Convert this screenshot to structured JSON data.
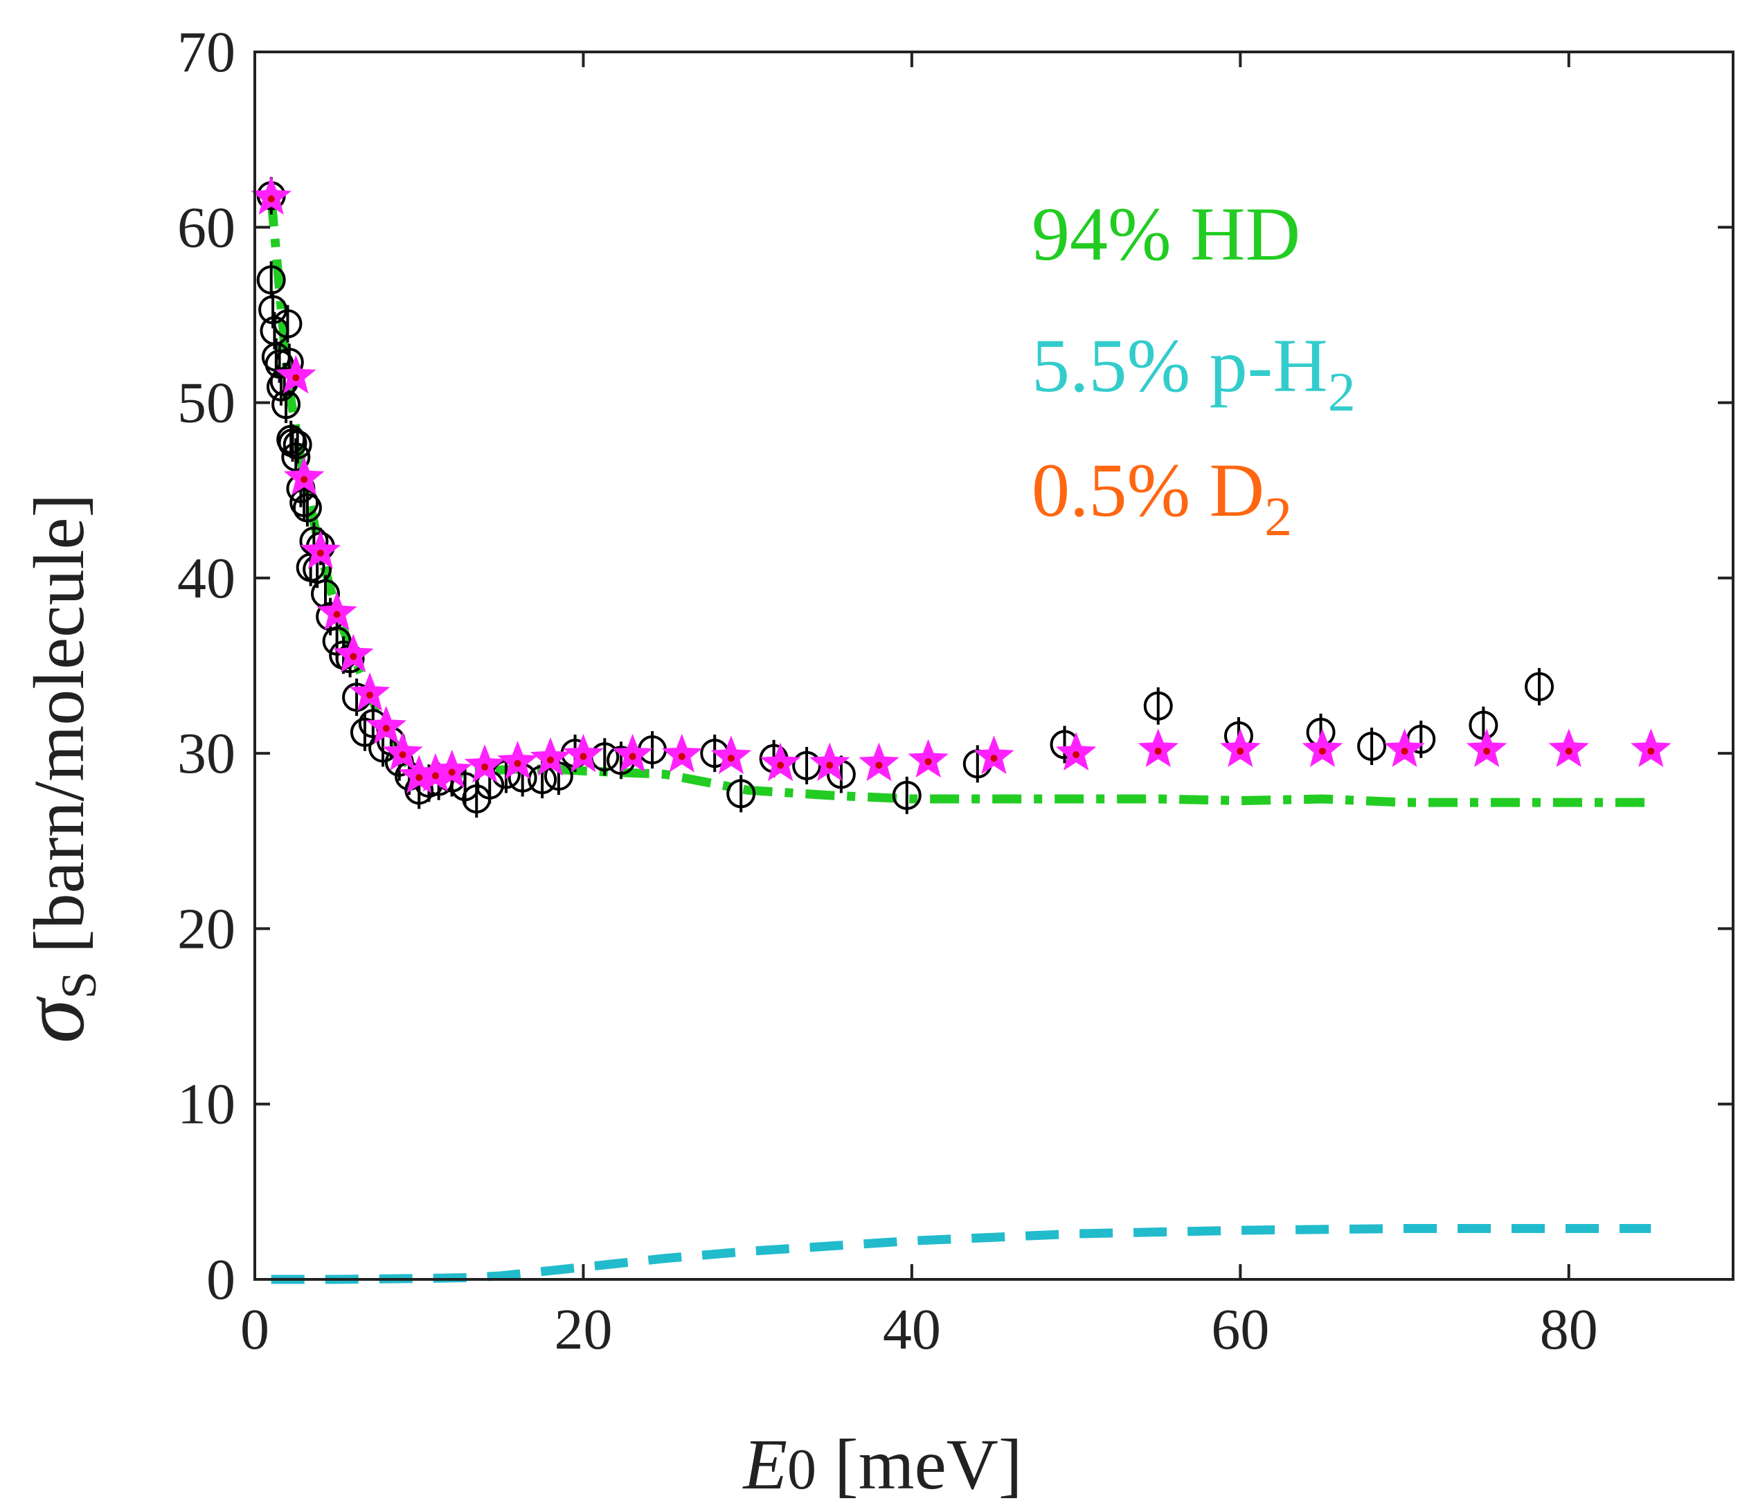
{
  "chart_data": {
    "type": "scatter",
    "xlabel": {
      "italic": "E",
      "sub": "0",
      "rest": " [meV]"
    },
    "ylabel": {
      "symbol": "σ",
      "sub": "S",
      "rest": " [barn/molecule]"
    },
    "xlim": [
      0,
      90
    ],
    "ylim": [
      0,
      70
    ],
    "xticks": [
      0,
      20,
      40,
      60,
      80
    ],
    "yticks": [
      0,
      10,
      20,
      30,
      40,
      50,
      60,
      70
    ],
    "grid": false,
    "annotations": [
      {
        "text": "94% HD",
        "sub": "",
        "color": "#22cc22"
      },
      {
        "text": "5.5% p-H",
        "sub": "2",
        "color": "#33cccc"
      },
      {
        "text": "0.5% D",
        "sub": "2",
        "color": "#ff6611"
      }
    ],
    "series": [
      {
        "marker": "circle-bar",
        "color": "#000000",
        "x": [
          1.0,
          1.0,
          1.1,
          1.2,
          1.3,
          1.5,
          1.6,
          1.8,
          1.9,
          2.0,
          2.1,
          2.2,
          2.3,
          2.5,
          2.6,
          2.8,
          3.0,
          3.2,
          3.4,
          3.6,
          3.8,
          4.0,
          4.3,
          4.6,
          5.0,
          5.4,
          5.8,
          6.2,
          6.7,
          7.2,
          7.8,
          8.3,
          8.8,
          9.4,
          10.0,
          10.6,
          11.2,
          12.0,
          12.8,
          13.5,
          14.3,
          15.3,
          16.3,
          17.5,
          18.5,
          19.5,
          21.3,
          22.3,
          24.2,
          28.0,
          29.6,
          31.6,
          33.6,
          35.7,
          39.7,
          44.0,
          49.3,
          55.0,
          59.9,
          64.9,
          68.0,
          71.0,
          74.8,
          78.2
        ],
        "y": [
          61.8,
          57.0,
          55.3,
          54.1,
          52.6,
          52.2,
          50.9,
          51.2,
          49.9,
          54.5,
          52.3,
          47.9,
          47.7,
          46.9,
          47.6,
          45.1,
          44.3,
          44.0,
          40.6,
          42.1,
          40.5,
          41.8,
          39.1,
          37.8,
          36.4,
          35.6,
          35.4,
          33.2,
          31.2,
          31.7,
          30.3,
          30.7,
          29.5,
          28.7,
          27.9,
          28.3,
          28.4,
          28.6,
          28.1,
          27.4,
          28.2,
          28.8,
          28.6,
          28.5,
          28.7,
          30.0,
          29.8,
          29.6,
          30.2,
          30.0,
          27.7,
          29.7,
          29.3,
          28.8,
          27.6,
          29.4,
          30.5,
          32.7,
          31.0,
          31.2,
          30.4,
          30.8,
          31.6,
          33.8
        ]
      },
      {
        "marker": "star",
        "color": "#ff22ff",
        "x": [
          1.0,
          2.5,
          3.0,
          4.0,
          5.0,
          6.0,
          7.0,
          8.0,
          9.0,
          10.0,
          11.0,
          12.0,
          14.0,
          16.0,
          18.0,
          20.0,
          23.0,
          26.0,
          29.0,
          32.0,
          35.0,
          38.0,
          41.0,
          45.0,
          50.0,
          55.0,
          60.0,
          65.0,
          70.0,
          75.0,
          80.0,
          85.0
        ],
        "y": [
          61.7,
          51.5,
          45.7,
          41.5,
          38.0,
          35.6,
          33.4,
          31.5,
          30.0,
          28.7,
          28.8,
          29.0,
          29.3,
          29.5,
          29.7,
          29.9,
          29.9,
          29.9,
          29.8,
          29.4,
          29.4,
          29.4,
          29.6,
          29.8,
          30.0,
          30.2,
          30.2,
          30.2,
          30.2,
          30.2,
          30.2,
          30.2
        ]
      },
      {
        "name": "94% HD",
        "line": "dashdot",
        "color": "#22cc22",
        "x": [
          1.0,
          2.0,
          3.0,
          4.0,
          5.0,
          6.0,
          7.0,
          8.0,
          9.0,
          10.0,
          12.0,
          14.0,
          16.0,
          18.0,
          20.0,
          25.0,
          30.0,
          35.0,
          40.0,
          45.0,
          50.0,
          55.0,
          60.0,
          65.0,
          70.0,
          75.0,
          80.0,
          85.0
        ],
        "y": [
          61.7,
          51.3,
          45.7,
          41.5,
          38.0,
          35.6,
          33.3,
          31.4,
          29.8,
          28.5,
          28.8,
          29.0,
          29.1,
          29.1,
          29.0,
          28.8,
          27.9,
          27.6,
          27.4,
          27.4,
          27.4,
          27.4,
          27.3,
          27.4,
          27.2,
          27.2,
          27.2,
          27.2
        ]
      },
      {
        "name": "5.5% p-H2",
        "line": "dashed",
        "color": "#22bbcc",
        "x": [
          1.0,
          5.0,
          10.0,
          13.0,
          15.0,
          17.0,
          20.0,
          25.0,
          30.0,
          35.0,
          40.0,
          45.0,
          50.0,
          55.0,
          60.0,
          65.0,
          70.0,
          75.0,
          80.0,
          85.0
        ],
        "y": [
          0.0,
          0.0,
          0.05,
          0.1,
          0.2,
          0.4,
          0.7,
          1.2,
          1.6,
          1.9,
          2.2,
          2.4,
          2.6,
          2.7,
          2.8,
          2.85,
          2.9,
          2.9,
          2.9,
          2.9
        ]
      }
    ]
  }
}
